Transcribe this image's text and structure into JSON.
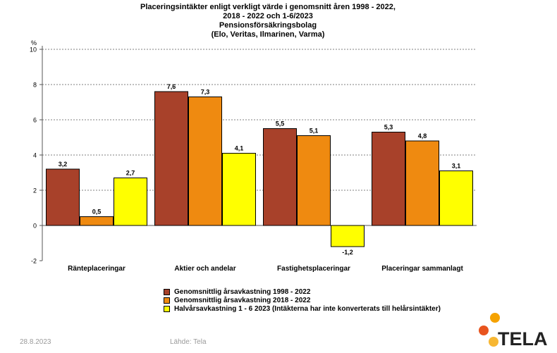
{
  "title_lines": [
    "Placeringsintäkter enligt verkligt värde i genomsnitt åren 1998 - 2022,",
    "2018 - 2022 och 1-6/2023",
    "Pensionsförsäkringsbolag",
    "(Elo, Veritas, Ilmarinen, Varma)"
  ],
  "chart_data": {
    "type": "bar",
    "ylabel": "%",
    "ylim": [
      -2,
      10
    ],
    "yticks": [
      -2,
      0,
      2,
      4,
      6,
      8,
      10
    ],
    "grid": true,
    "categories": [
      "Ränteplaceringar",
      "Aktier och andelar",
      "Fastighetsplaceringar",
      "Placeringar sammanlagt"
    ],
    "series": [
      {
        "name": "Genomsnittlig årsavkastning 1998 - 2022",
        "color": "#a8412a",
        "values": [
          3.2,
          7.6,
          5.5,
          5.3
        ],
        "labels": [
          "3,2",
          "7,6",
          "5,5",
          "5,3"
        ]
      },
      {
        "name": "Genomsnittlig årsavkastning 2018 - 2022",
        "color": "#ef8a10",
        "values": [
          0.5,
          7.3,
          5.1,
          4.8
        ],
        "labels": [
          "0,5",
          "7,3",
          "5,1",
          "4,8"
        ]
      },
      {
        "name": "Halvårsavkastning 1 - 6 2023 (Intäkterna har inte konverterats till helårsintäkter)",
        "color": "#ffff00",
        "values": [
          2.7,
          4.1,
          -1.2,
          3.1
        ],
        "labels": [
          "2,7",
          "4,1",
          "-1,2",
          "3,1"
        ]
      }
    ]
  },
  "footer": {
    "date": "28.8.2023",
    "source": "Lähde: Tela"
  },
  "logo": {
    "text": "TELA",
    "colors": [
      "#f5a200",
      "#e8541e",
      "#f7b733"
    ]
  }
}
